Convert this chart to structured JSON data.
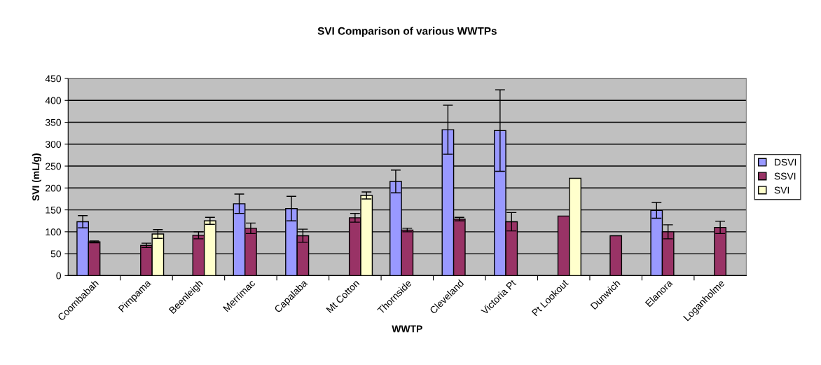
{
  "chart_data": {
    "type": "bar",
    "title": "SVI Comparison of various WWTPs",
    "xlabel": "WWTP",
    "ylabel": "SVI (mL/g)",
    "categories": [
      "Coombabah",
      "Pimpama",
      "Beenleigh",
      "Merrimac",
      "Capalaba",
      "Mt Cotton",
      "Thornside",
      "Cleveland",
      "Victoria Pt",
      "Pt Lookout",
      "Dunwich",
      "Elanora",
      "Loganholme"
    ],
    "series": [
      {
        "name": "DSVI",
        "color": "#9999ff",
        "values": [
          123,
          null,
          null,
          164,
          153,
          null,
          215,
          333,
          331,
          null,
          null,
          149,
          null
        ],
        "errors": [
          14,
          null,
          null,
          22,
          28,
          null,
          26,
          56,
          93,
          null,
          null,
          18,
          null
        ]
      },
      {
        "name": "SSVI",
        "color": "#993366",
        "values": [
          77,
          69,
          92,
          108,
          91,
          132,
          104,
          129,
          123,
          136,
          91,
          100,
          110
        ],
        "errors": [
          2,
          5,
          8,
          12,
          15,
          10,
          4,
          4,
          21,
          null,
          null,
          16,
          14
        ]
      },
      {
        "name": "SVI",
        "color": "#ffffcc",
        "values": [
          null,
          95,
          125,
          null,
          null,
          183,
          null,
          null,
          null,
          222,
          null,
          null,
          null
        ],
        "errors": [
          null,
          10,
          8,
          null,
          null,
          8,
          null,
          null,
          null,
          null,
          null,
          null,
          null
        ]
      }
    ],
    "ylim": [
      0,
      450
    ],
    "yticks": [
      0,
      50,
      100,
      150,
      200,
      250,
      300,
      350,
      400,
      450
    ],
    "grid": "y",
    "legend": "right"
  }
}
